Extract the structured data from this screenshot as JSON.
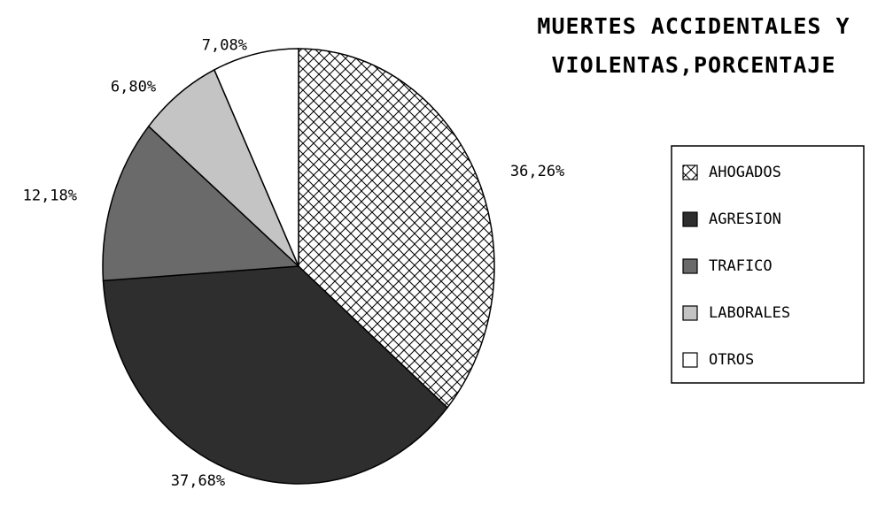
{
  "chart_data": {
    "type": "pie",
    "title": "MUERTES ACCIDENTALES Y VIOLENTAS,PORCENTAJE",
    "categories": [
      "AHOGADOS",
      "AGRESION",
      "TRAFICO",
      "LABORALES",
      "OTROS"
    ],
    "values": [
      36.26,
      37.68,
      12.18,
      6.8,
      7.08
    ],
    "value_labels": [
      "36,26%",
      "37,68%",
      "12,18%",
      "6,80%",
      "7,08%"
    ],
    "colors": [
      "#ffffff",
      "#2e2e2e",
      "#6a6a6a",
      "#c4c4c4",
      "#ffffff"
    ],
    "legend": "right"
  }
}
